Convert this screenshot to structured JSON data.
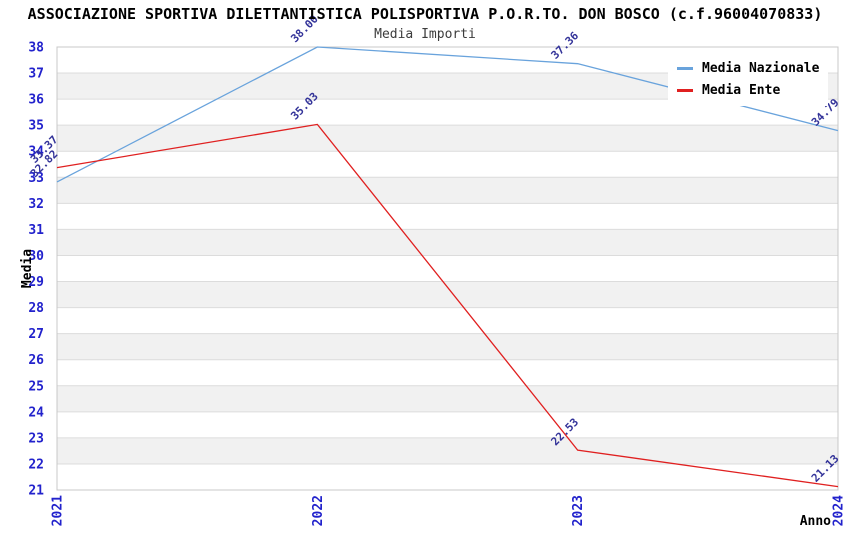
{
  "chart_data": {
    "type": "line",
    "title": "ASSOCIAZIONE SPORTIVA DILETTANTISTICA POLISPORTIVA P.O.R.TO. DON BOSCO (c.f.96004070833)",
    "subtitle": "Media Importi",
    "xlabel": "Anno",
    "ylabel": "Media",
    "categories": [
      "2021",
      "2022",
      "2023",
      "2024"
    ],
    "series": [
      {
        "name": "Media Nazionale",
        "color": "#69A3DC",
        "values": [
          32.82,
          38.0,
          37.36,
          34.79
        ]
      },
      {
        "name": "Media Ente",
        "color": "#E02020",
        "values": [
          33.37,
          35.03,
          22.53,
          21.13
        ]
      }
    ],
    "ylim": [
      21,
      38
    ],
    "ytick_step": 1,
    "xtick_rotation": 90,
    "point_label_rotation": 45,
    "point_label_decimals": 2,
    "grid": "horizontal",
    "band_fill": true,
    "legend_position": "top-right",
    "colors": {
      "axis_tick_label": "#2222CC",
      "point_label": "#333399",
      "band": "#F1F1F1",
      "grid_line": "#DCDCDC",
      "plot_border": "#C8C8C8",
      "title": "#000000",
      "subtitle": "#3C3C3C",
      "legend_text": "#000000",
      "background": "#FFFFFF"
    }
  }
}
